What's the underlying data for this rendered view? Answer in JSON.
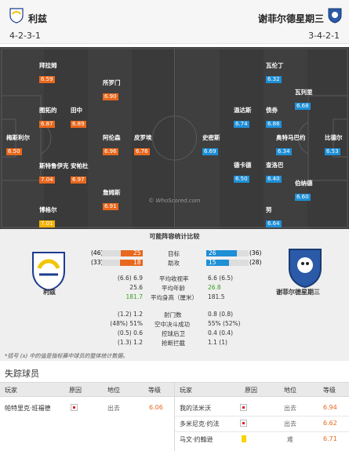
{
  "home": {
    "name": "利兹",
    "formation": "4-2-3-1",
    "players": [
      {
        "name": "拜拉姆",
        "rating": "6.59"
      },
      {
        "name": "所罗门",
        "rating": "6.90"
      },
      {
        "name": "图拓的",
        "rating": "6.87"
      },
      {
        "name": "田中",
        "rating": "6.89"
      },
      {
        "name": "梅斯利尔",
        "rating": "6.50"
      },
      {
        "name": "阿伦森",
        "rating": "6.96"
      },
      {
        "name": "皮罗埃",
        "rating": "6.76"
      },
      {
        "name": "斯特鲁伊克",
        "rating": "7.04"
      },
      {
        "name": "安帕杜",
        "rating": "6.97"
      },
      {
        "name": "詹姆斯",
        "rating": "6.91"
      },
      {
        "name": "博格尔",
        "rating": "7.01"
      }
    ]
  },
  "away": {
    "name": "谢菲尔德星期三",
    "formation": "3-4-2-1",
    "players": [
      {
        "name": "瓦伦丁",
        "rating": "6.32"
      },
      {
        "name": "瓦列里",
        "rating": "6.68"
      },
      {
        "name": "温达斯",
        "rating": "6.74"
      },
      {
        "name": "债券",
        "rating": "6.86"
      },
      {
        "name": "史密斯",
        "rating": "6.69"
      },
      {
        "name": "奥特马巴约",
        "rating": "6.34"
      },
      {
        "name": "比德尔",
        "rating": "6.53"
      },
      {
        "name": "德卡德",
        "rating": "6.50"
      },
      {
        "name": "查洛巴",
        "rating": "6.40"
      },
      {
        "name": "伯纳德",
        "rating": "6.60"
      },
      {
        "name": "努",
        "rating": "6.64"
      }
    ]
  },
  "watermark": "© WhoScored.com",
  "stats": {
    "title": "可能阵容统计比较",
    "goals": {
      "label": "目标",
      "home_total": "(46)",
      "home_value": "25",
      "away_value": "26",
      "away_total": "(36)",
      "home_fraction": 0.54,
      "away_fraction": 0.72
    },
    "assists": {
      "label": "助攻",
      "home_total": "(33)",
      "home_value": "18",
      "away_value": "15",
      "away_total": "(28)",
      "home_fraction": 0.55,
      "away_fraction": 0.54
    },
    "rows1": [
      {
        "label": "平均收视率",
        "home": "(6.6) 6.9",
        "away": "6.6 (6.5)"
      },
      {
        "label": "平均年龄",
        "home": "25.6",
        "away": "26.8"
      },
      {
        "label": "平均身高（厘米）",
        "home": "181.7",
        "away": "181.5"
      }
    ],
    "rows2": [
      {
        "label": "射门数",
        "home": "(1.2) 1.2",
        "away": "0.8 (0.8)"
      },
      {
        "label": "空中决斗成功",
        "home": "(48%) 51%",
        "away": "55% (52%)"
      },
      {
        "label": "控球后卫",
        "home": "(0.5) 0.6",
        "away": "0.4 (0.4)"
      },
      {
        "label": "抢断拦截",
        "home": "(1.3) 1.2",
        "away": "1.1 (1)"
      }
    ],
    "footnote": "*括号 (x) 中的值是指标赛中球员的整体统计数据。"
  },
  "missing": {
    "title": "失踪球员",
    "headers": {
      "player": "玩家",
      "reason": "原因",
      "status": "地位",
      "rating": "等级"
    },
    "home": [
      {
        "player": "帕特里克·班福德",
        "status": "出去",
        "rating": "6.06",
        "reason_icon": "injury-icon"
      }
    ],
    "away": [
      {
        "player": "我的法米沃",
        "status": "出去",
        "rating": "6.94",
        "reason_icon": "injury-icon"
      },
      {
        "player": "多米尼克·约法",
        "status": "出去",
        "rating": "6.62",
        "reason_icon": "injury-icon"
      },
      {
        "player": "马文·约翰逊",
        "status": "难",
        "rating": "6.71",
        "reason_icon": "suspension-icon"
      }
    ]
  }
}
